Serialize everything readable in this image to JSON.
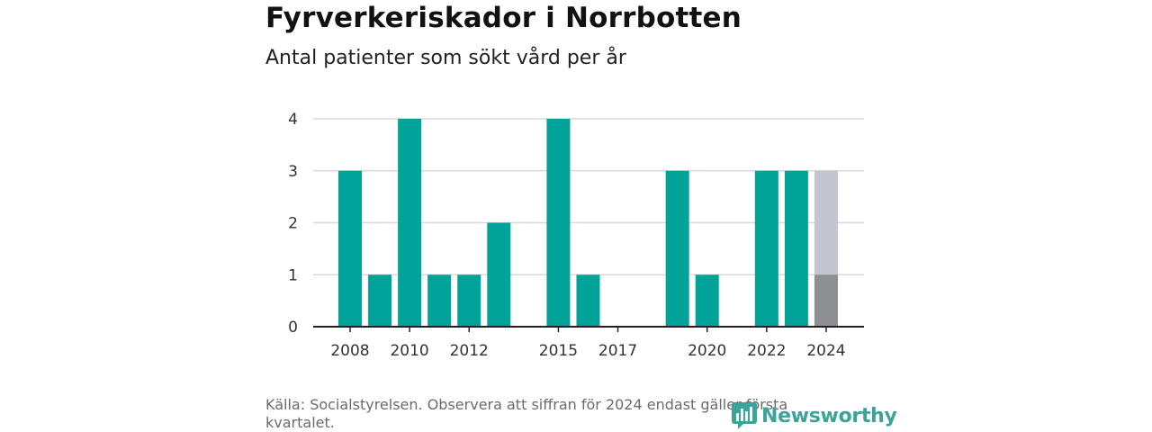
{
  "title": "Fyrverkeriskador i Norrbotten",
  "subtitle": "Antal patienter som sökt vård per år",
  "source": "Källa: Socialstyrelsen. Observera att siffran för 2024 endast gäller första kvartalet.",
  "logo_text": "Newsworthy",
  "colors": {
    "bar": "#00a398",
    "partial_bar_top": "#c5c4d1",
    "partial_bar_bottom": "#8e8f92",
    "grid": "#d9d9d9",
    "axis": "#222222",
    "logo": "#3aa39a"
  },
  "chart_data": {
    "type": "bar",
    "title": "Fyrverkeriskador i Norrbotten",
    "subtitle": "Antal patienter som sökt vård per år",
    "xlabel": "",
    "ylabel": "",
    "ylim": [
      0,
      4
    ],
    "yticks": [
      0,
      1,
      2,
      3,
      4
    ],
    "categories": [
      "2008",
      "2009",
      "2010",
      "2011",
      "2012",
      "2013",
      "2014",
      "2015",
      "2016",
      "2017",
      "2018",
      "2019",
      "2020",
      "2021",
      "2022",
      "2023",
      "2024"
    ],
    "xtick_labels": [
      "2008",
      "2010",
      "2012",
      "2015",
      "2017",
      "2020",
      "2022",
      "2024"
    ],
    "values": [
      3,
      1,
      4,
      1,
      1,
      2,
      0,
      4,
      1,
      0,
      0,
      3,
      1,
      0,
      3,
      3,
      1
    ],
    "partial_period": {
      "category": "2024",
      "observed_value": 1,
      "comparison_value": 3
    },
    "grid": true
  }
}
